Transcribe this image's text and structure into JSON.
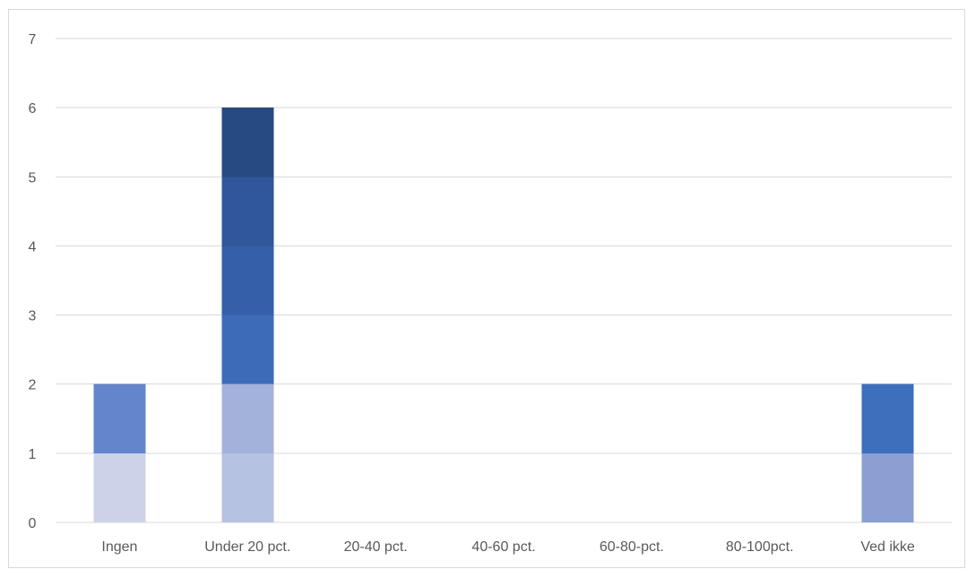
{
  "chart_data": {
    "type": "bar",
    "stacked": true,
    "title": "",
    "xlabel": "",
    "ylabel": "",
    "categories": [
      "Ingen",
      "Under 20 pct.",
      "20-40 pct.",
      "40-60 pct.",
      "60-80-pct.",
      "80-100pct.",
      "Ved ikke"
    ],
    "ylim": [
      0,
      7
    ],
    "yticks": [
      "0",
      "1",
      "2",
      "3",
      "4",
      "5",
      "6",
      "7"
    ],
    "grid": true,
    "legend": "none",
    "series": [
      {
        "color": "#ccd3e8",
        "values": [
          1,
          0,
          0,
          0,
          0,
          0,
          0
        ]
      },
      {
        "color": "#b6c2e1",
        "values": [
          0,
          1,
          0,
          0,
          0,
          0,
          0
        ]
      },
      {
        "color": "#a3b2db",
        "values": [
          0,
          1,
          0,
          0,
          0,
          0,
          0
        ]
      },
      {
        "color": "#8b9fd3",
        "values": [
          0,
          0,
          0,
          0,
          0,
          0,
          1
        ]
      },
      {
        "color": "#6585ca",
        "values": [
          1,
          0,
          0,
          0,
          0,
          0,
          0
        ]
      },
      {
        "color": "#3d6bb8",
        "values": [
          0,
          1,
          0,
          0,
          0,
          0,
          0
        ]
      },
      {
        "color": "#3d6fbc",
        "values": [
          0,
          0,
          0,
          0,
          0,
          0,
          1
        ]
      },
      {
        "color": "#355fa8",
        "values": [
          0,
          1,
          0,
          0,
          0,
          0,
          0
        ]
      },
      {
        "color": "#30579a",
        "values": [
          0,
          1,
          0,
          0,
          0,
          0,
          0
        ]
      },
      {
        "color": "#284a83",
        "values": [
          0,
          1,
          0,
          0,
          0,
          0,
          0
        ]
      }
    ]
  }
}
